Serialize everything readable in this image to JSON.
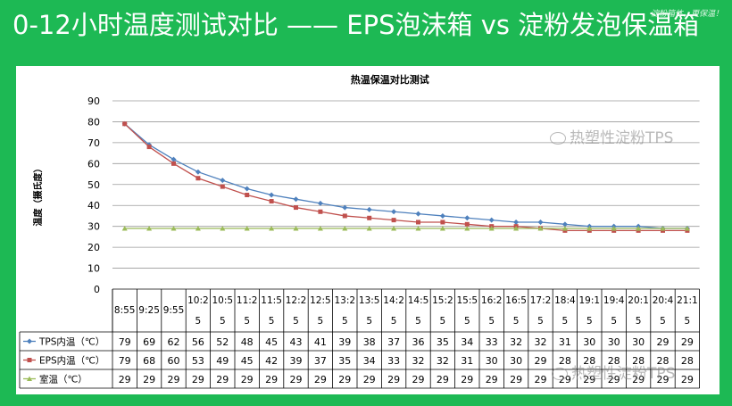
{
  "slide": {
    "title": "0-12小时温度测试对比 —— EPS泡沫箱 vs 淀粉发泡保温箱",
    "corner_note": "淀粉箱体，更保温！"
  },
  "watermark": {
    "text": "热塑性淀粉TPS"
  },
  "chart_data": {
    "type": "line",
    "title": "热温保温对比测试",
    "ylabel": "温度（摄氏度）",
    "xlabel": "",
    "ylim": [
      0,
      90
    ],
    "yticks": [
      0,
      10,
      20,
      30,
      40,
      50,
      60,
      70,
      80,
      90
    ],
    "grid": true,
    "legend": "table-below",
    "categories": [
      "8:55",
      "9:25",
      "9:55",
      "10:25",
      "10:55",
      "11:25",
      "11:55",
      "12:25",
      "12:55",
      "13:25",
      "13:55",
      "14:25",
      "14:55",
      "15:25",
      "15:55",
      "16:25",
      "16:55",
      "17:25",
      "18:45",
      "19:15",
      "19:45",
      "20:15",
      "20:45",
      "21:15"
    ],
    "category_labels": [
      [
        "8:55"
      ],
      [
        "9:25"
      ],
      [
        "9:55"
      ],
      [
        "10:2",
        "5"
      ],
      [
        "10:5",
        "5"
      ],
      [
        "11:2",
        "5"
      ],
      [
        "11:5",
        "5"
      ],
      [
        "12:2",
        "5"
      ],
      [
        "12:5",
        "5"
      ],
      [
        "13:2",
        "5"
      ],
      [
        "13:5",
        "5"
      ],
      [
        "14:2",
        "5"
      ],
      [
        "14:5",
        "5"
      ],
      [
        "15:2",
        "5"
      ],
      [
        "15:5",
        "5"
      ],
      [
        "16:2",
        "5"
      ],
      [
        "16:5",
        "5"
      ],
      [
        "17:2",
        "5"
      ],
      [
        "18:4",
        "5"
      ],
      [
        "19:1",
        "5"
      ],
      [
        "19:4",
        "5"
      ],
      [
        "20:1",
        "5"
      ],
      [
        "20:4",
        "5"
      ],
      [
        "21:1",
        "5"
      ]
    ],
    "series": [
      {
        "name": "TPS内温（℃）",
        "color": "#4f81bd",
        "marker": "diamond",
        "values": [
          79,
          69,
          62,
          56,
          52,
          48,
          45,
          43,
          41,
          39,
          38,
          37,
          36,
          35,
          34,
          33,
          32,
          32,
          31,
          30,
          30,
          30,
          29,
          29
        ]
      },
      {
        "name": "EPS内温（℃）",
        "color": "#c0504d",
        "marker": "square",
        "values": [
          79,
          68,
          60,
          53,
          49,
          45,
          42,
          39,
          37,
          35,
          34,
          33,
          32,
          32,
          31,
          30,
          30,
          29,
          28,
          28,
          28,
          28,
          28,
          28
        ]
      },
      {
        "name": "室温（℃）",
        "color": "#9bbb59",
        "marker": "triangle",
        "values": [
          29,
          29,
          29,
          29,
          29,
          29,
          29,
          29,
          29,
          29,
          29,
          29,
          29,
          29,
          29,
          29,
          29,
          29,
          29,
          29,
          29,
          29,
          29,
          29
        ]
      }
    ]
  }
}
